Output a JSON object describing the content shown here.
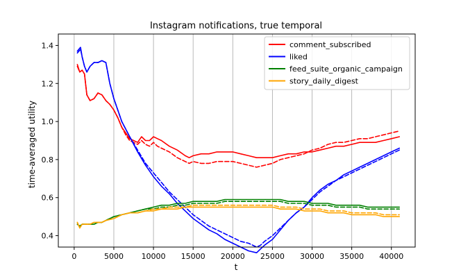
{
  "chart_data": {
    "type": "line",
    "title": "Instagram notifications, true temporal",
    "xlabel": "t",
    "ylabel": "time-averaged utility",
    "xlim": [
      -2000,
      43000
    ],
    "ylim": [
      0.34,
      1.46
    ],
    "xticks": [
      0,
      5000,
      10000,
      15000,
      20000,
      25000,
      30000,
      35000,
      40000
    ],
    "yticks": [
      0.4,
      0.6,
      0.8,
      1.0,
      1.2,
      1.4
    ],
    "xtick_labels": [
      "0",
      "5000",
      "10000",
      "15000",
      "20000",
      "25000",
      "30000",
      "35000",
      "40000"
    ],
    "ytick_labels": [
      "0.4",
      "0.6",
      "0.8",
      "1.0",
      "1.2",
      "1.4"
    ],
    "grid": "vertical",
    "legend_position": "top-right",
    "series": [
      {
        "name": "comment_subscribed",
        "color": "#ff0000",
        "x": [
          400,
          700,
          1000,
          1300,
          1600,
          2000,
          2500,
          3000,
          3500,
          4000,
          4500,
          5000,
          5500,
          6000,
          6500,
          7000,
          7500,
          8000,
          8500,
          9000,
          9500,
          10000,
          10500,
          11000,
          12000,
          13000,
          14000,
          14500,
          15000,
          16000,
          17000,
          18000,
          19000,
          20000,
          21000,
          22000,
          23000,
          24000,
          25000,
          26000,
          27000,
          28000,
          29000,
          30000,
          31000,
          32000,
          33000,
          34000,
          35000,
          36000,
          37000,
          38000,
          39000,
          40000,
          41000
        ],
        "values": [
          1.3,
          1.26,
          1.27,
          1.25,
          1.14,
          1.11,
          1.12,
          1.15,
          1.14,
          1.11,
          1.09,
          1.06,
          1.02,
          0.97,
          0.94,
          0.91,
          0.9,
          0.89,
          0.92,
          0.9,
          0.9,
          0.92,
          0.91,
          0.9,
          0.87,
          0.85,
          0.82,
          0.81,
          0.82,
          0.83,
          0.83,
          0.84,
          0.84,
          0.84,
          0.83,
          0.82,
          0.81,
          0.81,
          0.81,
          0.82,
          0.83,
          0.83,
          0.84,
          0.84,
          0.85,
          0.86,
          0.87,
          0.87,
          0.88,
          0.89,
          0.89,
          0.89,
          0.9,
          0.91,
          0.92
        ]
      },
      {
        "name": "comment_subscribed (dashed)",
        "color": "#ff0000",
        "dashed": true,
        "x": [
          400,
          700,
          1000,
          1300,
          1600,
          2000,
          2500,
          3000,
          3500,
          4000,
          4500,
          5000,
          5500,
          6000,
          6500,
          7000,
          7500,
          8000,
          8500,
          9000,
          9500,
          10000,
          10500,
          11000,
          12000,
          13000,
          14000,
          14500,
          15000,
          16000,
          17000,
          18000,
          19000,
          20000,
          21000,
          22000,
          23000,
          24000,
          25000,
          26000,
          27000,
          28000,
          29000,
          30000,
          31000,
          32000,
          33000,
          34000,
          35000,
          36000,
          37000,
          38000,
          39000,
          40000,
          41000
        ],
        "values": [
          1.29,
          1.26,
          1.27,
          1.25,
          1.14,
          1.11,
          1.12,
          1.15,
          1.14,
          1.11,
          1.09,
          1.06,
          1.02,
          0.97,
          0.93,
          0.9,
          0.89,
          0.88,
          0.9,
          0.88,
          0.87,
          0.89,
          0.87,
          0.86,
          0.84,
          0.81,
          0.79,
          0.78,
          0.79,
          0.78,
          0.78,
          0.79,
          0.79,
          0.79,
          0.78,
          0.77,
          0.76,
          0.77,
          0.78,
          0.8,
          0.81,
          0.82,
          0.83,
          0.85,
          0.86,
          0.88,
          0.89,
          0.89,
          0.9,
          0.91,
          0.91,
          0.92,
          0.93,
          0.94,
          0.95
        ]
      },
      {
        "name": "liked",
        "color": "#0000ff",
        "x": [
          400,
          600,
          800,
          1000,
          1300,
          1600,
          2000,
          2500,
          3000,
          3500,
          4000,
          4500,
          5000,
          5500,
          6000,
          7000,
          8000,
          9000,
          10000,
          11000,
          12000,
          13000,
          14000,
          15000,
          16000,
          17000,
          18000,
          19000,
          20000,
          21000,
          22000,
          23000,
          23500,
          24000,
          25000,
          26000,
          27000,
          28000,
          29000,
          30000,
          31000,
          32000,
          33000,
          34000,
          35000,
          36000,
          37000,
          38000,
          39000,
          40000,
          41000
        ],
        "values": [
          1.37,
          1.38,
          1.39,
          1.34,
          1.29,
          1.26,
          1.29,
          1.31,
          1.31,
          1.32,
          1.31,
          1.2,
          1.12,
          1.06,
          1.0,
          0.92,
          0.84,
          0.77,
          0.71,
          0.66,
          0.62,
          0.57,
          0.53,
          0.49,
          0.46,
          0.43,
          0.41,
          0.38,
          0.36,
          0.34,
          0.32,
          0.31,
          0.33,
          0.35,
          0.38,
          0.43,
          0.48,
          0.52,
          0.55,
          0.6,
          0.64,
          0.67,
          0.69,
          0.72,
          0.74,
          0.76,
          0.78,
          0.8,
          0.82,
          0.84,
          0.86
        ]
      },
      {
        "name": "liked (dashed)",
        "color": "#0000ff",
        "dashed": true,
        "x": [
          400,
          600,
          800,
          1000,
          1300,
          1600,
          2000,
          2500,
          3000,
          3500,
          4000,
          4500,
          5000,
          5500,
          6000,
          7000,
          8000,
          9000,
          10000,
          11000,
          12000,
          13000,
          14000,
          15000,
          16000,
          17000,
          18000,
          19000,
          20000,
          21000,
          22000,
          23000,
          23500,
          24000,
          25000,
          26000,
          27000,
          28000,
          29000,
          30000,
          31000,
          32000,
          33000,
          34000,
          35000,
          36000,
          37000,
          38000,
          39000,
          40000,
          41000
        ],
        "values": [
          1.36,
          1.37,
          1.38,
          1.34,
          1.29,
          1.26,
          1.29,
          1.31,
          1.31,
          1.32,
          1.31,
          1.2,
          1.12,
          1.06,
          1.0,
          0.92,
          0.85,
          0.78,
          0.73,
          0.68,
          0.63,
          0.59,
          0.55,
          0.51,
          0.48,
          0.45,
          0.43,
          0.41,
          0.39,
          0.37,
          0.36,
          0.34,
          0.35,
          0.37,
          0.4,
          0.44,
          0.48,
          0.52,
          0.55,
          0.59,
          0.63,
          0.66,
          0.69,
          0.71,
          0.73,
          0.75,
          0.77,
          0.79,
          0.81,
          0.83,
          0.85
        ]
      },
      {
        "name": "feed_suite_organic_campaign",
        "color": "#008000",
        "x": [
          400,
          700,
          1000,
          1500,
          2000,
          2500,
          3000,
          3500,
          4000,
          5000,
          6000,
          7000,
          8000,
          9000,
          10000,
          11000,
          12000,
          13000,
          14000,
          15000,
          16000,
          17000,
          18000,
          19000,
          20000,
          21000,
          22000,
          23000,
          24000,
          25000,
          26000,
          27000,
          28000,
          29000,
          30000,
          31000,
          32000,
          33000,
          34000,
          35000,
          36000,
          37000,
          38000,
          39000,
          40000,
          41000
        ],
        "values": [
          0.46,
          0.45,
          0.46,
          0.46,
          0.46,
          0.46,
          0.47,
          0.47,
          0.48,
          0.5,
          0.51,
          0.52,
          0.53,
          0.54,
          0.55,
          0.56,
          0.56,
          0.57,
          0.57,
          0.58,
          0.58,
          0.58,
          0.58,
          0.59,
          0.59,
          0.59,
          0.59,
          0.59,
          0.59,
          0.59,
          0.59,
          0.58,
          0.58,
          0.58,
          0.57,
          0.57,
          0.57,
          0.56,
          0.56,
          0.56,
          0.56,
          0.55,
          0.55,
          0.55,
          0.55,
          0.55
        ]
      },
      {
        "name": "feed_suite_organic_campaign (dashed)",
        "color": "#008000",
        "dashed": true,
        "x": [
          400,
          700,
          1000,
          1500,
          2000,
          2500,
          3000,
          3500,
          4000,
          5000,
          6000,
          7000,
          8000,
          9000,
          10000,
          11000,
          12000,
          13000,
          14000,
          15000,
          16000,
          17000,
          18000,
          19000,
          20000,
          21000,
          22000,
          23000,
          24000,
          25000,
          26000,
          27000,
          28000,
          29000,
          30000,
          31000,
          32000,
          33000,
          34000,
          35000,
          36000,
          37000,
          38000,
          39000,
          40000,
          41000
        ],
        "values": [
          0.46,
          0.45,
          0.46,
          0.46,
          0.46,
          0.46,
          0.47,
          0.47,
          0.48,
          0.5,
          0.51,
          0.52,
          0.53,
          0.54,
          0.54,
          0.55,
          0.55,
          0.56,
          0.56,
          0.57,
          0.57,
          0.57,
          0.57,
          0.58,
          0.58,
          0.58,
          0.58,
          0.58,
          0.58,
          0.58,
          0.58,
          0.57,
          0.57,
          0.57,
          0.56,
          0.56,
          0.56,
          0.55,
          0.55,
          0.55,
          0.55,
          0.54,
          0.54,
          0.54,
          0.54,
          0.54
        ]
      },
      {
        "name": "story_daily_digest",
        "color": "#ffa500",
        "x": [
          400,
          700,
          1000,
          1500,
          2000,
          2500,
          3000,
          3500,
          4000,
          5000,
          6000,
          7000,
          8000,
          9000,
          10000,
          11000,
          12000,
          13000,
          14000,
          15000,
          16000,
          17000,
          18000,
          19000,
          20000,
          21000,
          22000,
          23000,
          24000,
          25000,
          26000,
          27000,
          28000,
          29000,
          30000,
          31000,
          32000,
          33000,
          34000,
          35000,
          36000,
          37000,
          38000,
          39000,
          40000,
          41000
        ],
        "values": [
          0.47,
          0.44,
          0.46,
          0.46,
          0.46,
          0.47,
          0.47,
          0.47,
          0.48,
          0.49,
          0.51,
          0.52,
          0.52,
          0.53,
          0.53,
          0.54,
          0.54,
          0.54,
          0.55,
          0.55,
          0.55,
          0.55,
          0.55,
          0.55,
          0.55,
          0.55,
          0.55,
          0.55,
          0.55,
          0.55,
          0.54,
          0.54,
          0.54,
          0.53,
          0.53,
          0.53,
          0.52,
          0.52,
          0.52,
          0.51,
          0.51,
          0.51,
          0.51,
          0.5,
          0.5,
          0.5
        ]
      },
      {
        "name": "story_daily_digest (dashed)",
        "color": "#ffa500",
        "dashed": true,
        "x": [
          400,
          700,
          1000,
          1500,
          2000,
          2500,
          3000,
          3500,
          4000,
          5000,
          6000,
          7000,
          8000,
          9000,
          10000,
          11000,
          12000,
          13000,
          14000,
          15000,
          16000,
          17000,
          18000,
          19000,
          20000,
          21000,
          22000,
          23000,
          24000,
          25000,
          26000,
          27000,
          28000,
          29000,
          30000,
          31000,
          32000,
          33000,
          34000,
          35000,
          36000,
          37000,
          38000,
          39000,
          40000,
          41000
        ],
        "values": [
          0.47,
          0.44,
          0.46,
          0.46,
          0.46,
          0.47,
          0.47,
          0.47,
          0.48,
          0.49,
          0.51,
          0.52,
          0.52,
          0.53,
          0.54,
          0.54,
          0.55,
          0.55,
          0.55,
          0.56,
          0.56,
          0.56,
          0.56,
          0.56,
          0.56,
          0.56,
          0.56,
          0.56,
          0.56,
          0.56,
          0.55,
          0.55,
          0.55,
          0.54,
          0.54,
          0.54,
          0.53,
          0.53,
          0.53,
          0.52,
          0.52,
          0.52,
          0.52,
          0.51,
          0.51,
          0.51
        ]
      }
    ],
    "legend": [
      {
        "label": "comment_subscribed",
        "color": "#ff0000"
      },
      {
        "label": "liked",
        "color": "#0000ff"
      },
      {
        "label": "feed_suite_organic_campaign",
        "color": "#008000"
      },
      {
        "label": "story_daily_digest",
        "color": "#ffa500"
      }
    ]
  }
}
